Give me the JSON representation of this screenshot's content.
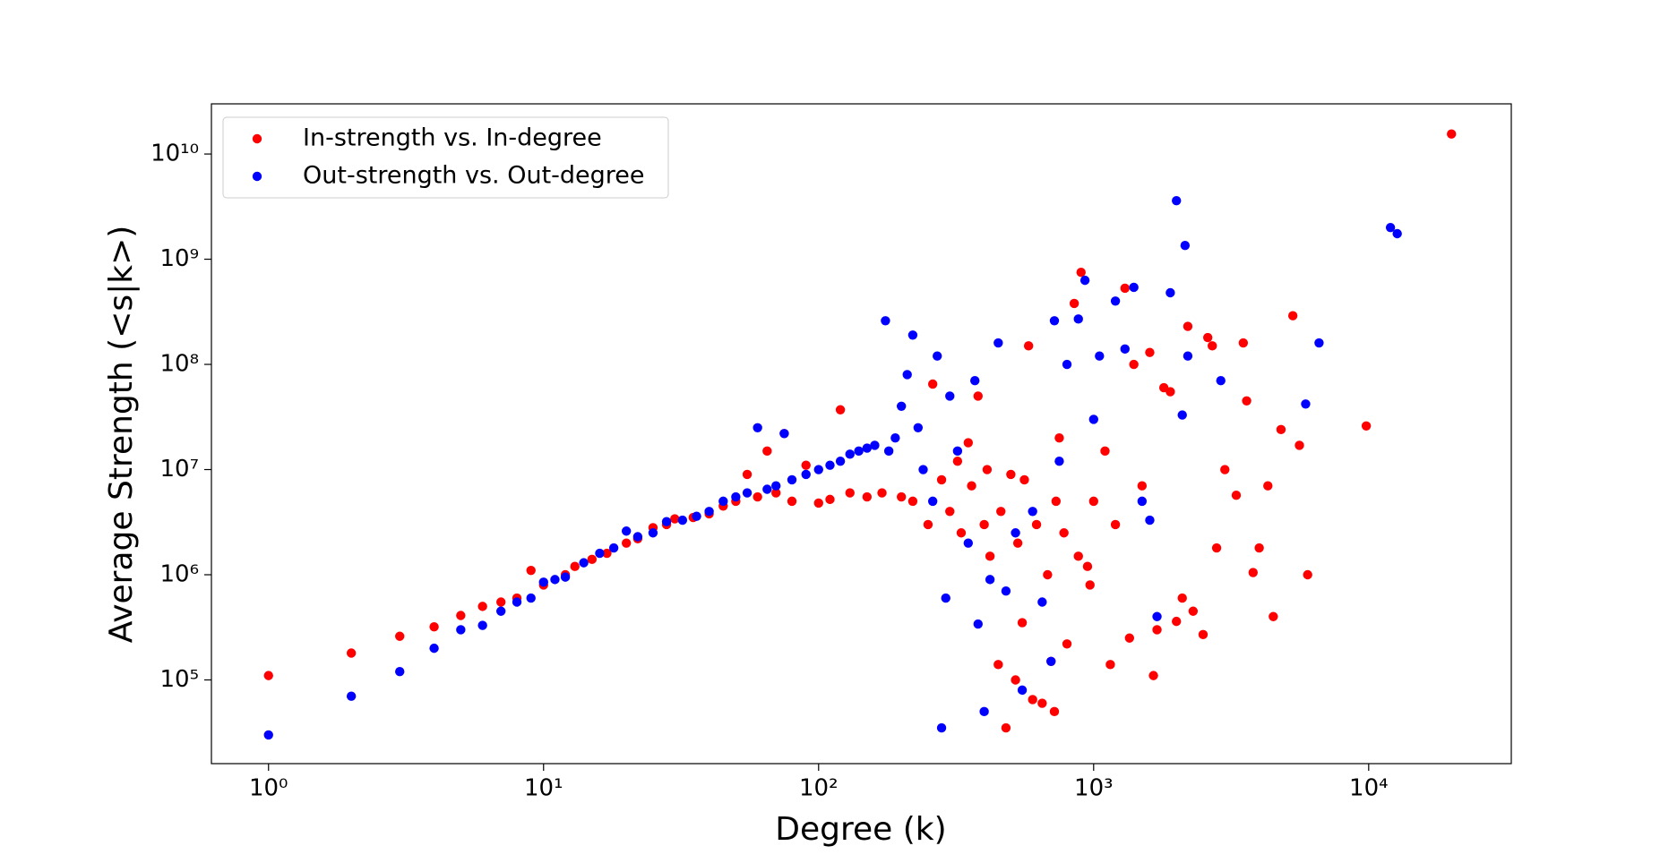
{
  "chart_data": {
    "type": "scatter",
    "xlabel": "Degree (k)",
    "ylabel": "Average Strength (<s|k>)",
    "xscale": "log",
    "yscale": "log",
    "grid": false,
    "legend": "upper left",
    "xlim": [
      0.62,
      33000
    ],
    "ylim": [
      16000,
      30000000000
    ],
    "xticks": [
      {
        "value": 1,
        "label": "10⁰"
      },
      {
        "value": 10,
        "label": "10¹"
      },
      {
        "value": 100,
        "label": "10²"
      },
      {
        "value": 1000,
        "label": "10³"
      },
      {
        "value": 10000,
        "label": "10⁴"
      }
    ],
    "yticks": [
      {
        "value": 100000,
        "label": "10⁵"
      },
      {
        "value": 1000000,
        "label": "10⁶"
      },
      {
        "value": 10000000,
        "label": "10⁷"
      },
      {
        "value": 100000000,
        "label": "10⁸"
      },
      {
        "value": 1000000000,
        "label": "10⁹"
      },
      {
        "value": 10000000000,
        "label": "10¹⁰"
      }
    ],
    "series": [
      {
        "name": "In-strength vs. In-degree",
        "color": "#ff0000",
        "x": [
          1,
          2,
          3,
          4,
          5,
          6,
          7,
          8,
          9,
          10,
          12,
          13,
          15,
          17,
          20,
          22,
          25,
          28,
          30,
          35,
          40,
          45,
          50,
          55,
          60,
          65,
          70,
          75,
          80,
          90,
          100,
          110,
          120,
          130,
          150,
          170,
          200,
          220,
          250,
          260,
          280,
          300,
          320,
          350,
          380,
          400,
          420,
          450,
          480,
          500,
          520,
          550,
          580,
          600,
          650,
          700,
          720,
          750,
          800,
          850,
          900,
          950,
          1000,
          1100,
          1150,
          1200,
          1300,
          1350,
          1400,
          1500,
          1600,
          1650,
          1700,
          1800,
          1900,
          2000,
          2100,
          2200,
          2300,
          2500,
          2600,
          2700,
          2800,
          3000,
          3300,
          3500,
          3600,
          3800,
          4000,
          4300,
          4500,
          4800,
          5300,
          5600,
          6000,
          9800,
          20000,
          330,
          360,
          410,
          460,
          530,
          560,
          620,
          680,
          730,
          780,
          880,
          970
        ],
        "values": [
          110000,
          180000,
          260000,
          320000,
          410000,
          500000,
          550000,
          600000,
          1100000,
          800000,
          1000000,
          1200000,
          1400000,
          1600000,
          2000000,
          2200000,
          2800000,
          3000000,
          3400000,
          3500000,
          3800000,
          4500000,
          5000000,
          9000000,
          5500000,
          15000000,
          6000000,
          22000000,
          5000000,
          11000000,
          4800000,
          5200000,
          37000000,
          6000000,
          5500000,
          6000000,
          5500000,
          5000000,
          3000000,
          65000000,
          8000000,
          4000000,
          12000000,
          18000000,
          50000000,
          3000000,
          1500000,
          140000,
          35000,
          9000000,
          100000,
          350000,
          150000000,
          65000,
          60000,
          150000,
          50000,
          20000000,
          220000,
          380000000,
          750000000,
          1200000,
          5000000,
          15000000,
          140000,
          3000000,
          530000000,
          250000,
          100000000,
          7000000,
          130000000,
          110000,
          300000,
          60000000,
          55000000,
          360000,
          600000,
          230000000,
          450000,
          270000,
          180000000,
          150000000,
          1800000,
          10000000,
          5700000,
          160000000,
          45000000,
          1050000,
          1800000,
          7000000,
          400000,
          24000000,
          290000000,
          17000000,
          1000000,
          26000000,
          15500000000,
          2500000,
          7000000,
          10000000,
          4000000,
          2000000,
          8000000,
          3000000,
          1000000,
          5000000,
          2500000,
          1500000,
          800000
        ]
      },
      {
        "name": "Out-strength vs. Out-degree",
        "color": "#0000ff",
        "x": [
          1,
          2,
          3,
          4,
          5,
          6,
          7,
          8,
          9,
          10,
          11,
          12,
          14,
          16,
          18,
          20,
          22,
          25,
          28,
          32,
          36,
          40,
          45,
          50,
          55,
          60,
          65,
          70,
          75,
          80,
          90,
          100,
          110,
          120,
          130,
          140,
          150,
          160,
          175,
          180,
          190,
          200,
          210,
          220,
          230,
          240,
          260,
          270,
          280,
          290,
          300,
          320,
          350,
          370,
          380,
          400,
          420,
          450,
          480,
          520,
          550,
          600,
          650,
          700,
          720,
          750,
          800,
          880,
          930,
          1000,
          1050,
          1200,
          1300,
          1400,
          1500,
          1600,
          1700,
          1900,
          2000,
          2100,
          2150,
          2200,
          2900,
          5900,
          6600,
          12000,
          12700
        ],
        "values": [
          30000,
          70000,
          120000,
          200000,
          300000,
          330000,
          450000,
          550000,
          600000,
          850000,
          900000,
          950000,
          1300000,
          1600000,
          1800000,
          2600000,
          2300000,
          2500000,
          3200000,
          3300000,
          3600000,
          4000000,
          5000000,
          5500000,
          6000000,
          25000000,
          6500000,
          7000000,
          22000000,
          8000000,
          9000000,
          10000000,
          11000000,
          12000000,
          14000000,
          15000000,
          16000000,
          17000000,
          260000000,
          15000000,
          20000000,
          40000000,
          80000000,
          190000000,
          25000000,
          10000000,
          5000000,
          120000000,
          35000,
          600000,
          50000000,
          15000000,
          2000000,
          70000000,
          340000,
          50000,
          900000,
          160000000,
          700000,
          2500000,
          80000,
          4000000,
          550000,
          150000,
          260000000,
          12000000,
          100000000,
          270000000,
          630000000,
          30000000,
          120000000,
          400000000,
          140000000,
          540000000,
          5000000,
          3300000,
          400000,
          480000000,
          3600000000,
          33000000,
          1350000000,
          120000000,
          70000000,
          42000000,
          160000000,
          2000000000,
          1750000000
        ]
      }
    ]
  }
}
